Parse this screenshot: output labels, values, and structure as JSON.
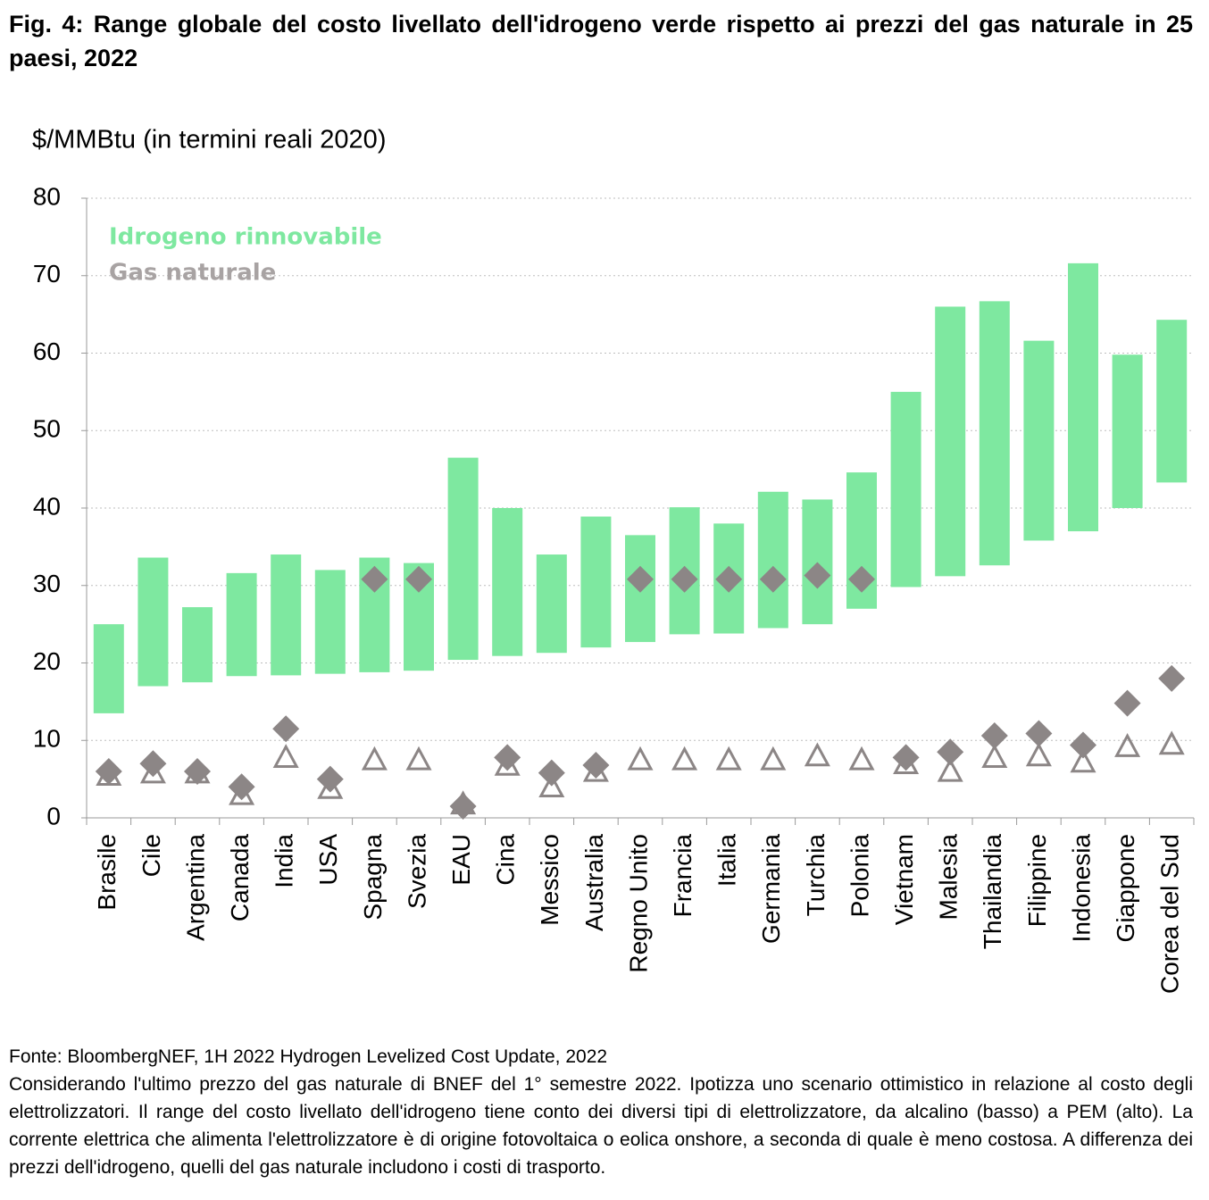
{
  "chart_data": {
    "type": "range",
    "title": "Fig. 4: Range globale del costo livellato dell'idrogeno verde rispetto ai prezzi del gas naturale in 25 paesi, 2022",
    "y_label": "$/MMBtu (in termini reali 2020)",
    "categories": [
      "Brasile",
      "Cile",
      "Argentina",
      "Canada",
      "India",
      "USA",
      "Spagna",
      "Svezia",
      "EAU",
      "Cina",
      "Messico",
      "Australia",
      "Regno Unito",
      "Francia",
      "Italia",
      "Germania",
      "Turchia",
      "Polonia",
      "Vietnam",
      "Malesia",
      "Thailandia",
      "Filippine",
      "Indonesia",
      "Giappone",
      "Corea del Sud"
    ],
    "hydrogen": {
      "name": "Idrogeno rinnovabile",
      "color": "#7ee8a0",
      "low": [
        13.5,
        17,
        17.5,
        18.3,
        18.4,
        18.6,
        18.8,
        19,
        20.4,
        20.9,
        21.3,
        22,
        22.7,
        23.7,
        23.8,
        24.5,
        25,
        27,
        29.8,
        31.2,
        32.6,
        35.8,
        37,
        40,
        43.3
      ],
      "high": [
        25,
        33.6,
        27.2,
        31.6,
        34,
        32,
        33.6,
        32.9,
        46.5,
        40,
        34,
        38.9,
        36.5,
        40.1,
        38,
        42.1,
        41.1,
        44.6,
        55,
        66,
        66.7,
        61.6,
        71.6,
        59.8,
        64.3
      ]
    },
    "gas": {
      "name": "Gas naturale",
      "color": "#8c8686",
      "legend_color": "#a8a3a3",
      "diamond": [
        6,
        7,
        6,
        4,
        11.5,
        5,
        30.8,
        30.8,
        1.5,
        7.8,
        5.8,
        6.8,
        30.8,
        30.8,
        30.8,
        30.8,
        31.3,
        30.8,
        7.8,
        8.5,
        10.6,
        10.9,
        9.4,
        14.8,
        18
      ],
      "triangle": [
        5.5,
        5.8,
        5.8,
        3,
        7.8,
        3.8,
        7.5,
        7.5,
        1.8,
        6.8,
        4,
        6,
        7.5,
        7.5,
        7.5,
        7.5,
        8,
        7.5,
        7,
        6,
        7.8,
        8,
        7.2,
        9.2,
        9.5
      ]
    },
    "ylim": [
      0,
      80
    ],
    "yticks": [
      0,
      10,
      20,
      30,
      40,
      50,
      60,
      70,
      80
    ],
    "grid": true,
    "source": "Fonte: BloombergNEF, 1H 2022 Hydrogen Levelized Cost Update, 2022",
    "note": "Considerando l'ultimo prezzo del gas naturale di BNEF del 1° semestre 2022. Ipotizza uno scenario ottimistico in relazione al costo degli elettrolizzatori. Il range del costo livellato dell'idrogeno tiene conto dei diversi tipi di elettrolizzatore, da alcalino (basso) a PEM (alto). La corrente elettrica che alimenta l'elettrolizzatore è di origine fotovoltaica o eolica onshore, a seconda di quale è meno costosa. A differenza dei prezzi dell'idrogeno, quelli del gas naturale includono i costi di trasporto."
  }
}
